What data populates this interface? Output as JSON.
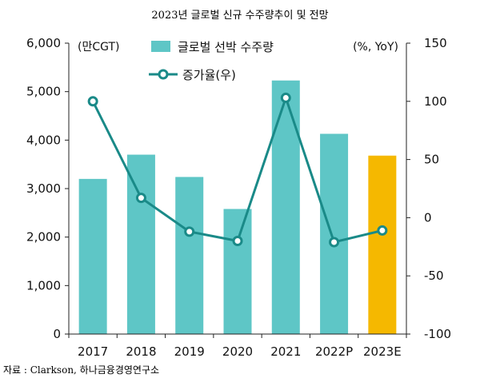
{
  "title": "2023년 글로벌 신규 수주량추이 및 전망",
  "source": "자료 : Clarkson, 하나금융경영연구소",
  "chart_data": {
    "type": "bar",
    "categories": [
      "2017",
      "2018",
      "2019",
      "2020",
      "2021",
      "2022P",
      "2023E"
    ],
    "series": [
      {
        "name": "글로벌 선박 수주량",
        "type": "bar",
        "axis": "left",
        "values": [
          3200,
          3700,
          3240,
          2580,
          5230,
          4130,
          3680
        ],
        "color": "#5ec6c6",
        "highlight": {
          "index": 6,
          "color": "#f5b800"
        }
      },
      {
        "name": "증가율(우)",
        "type": "line",
        "axis": "right",
        "values": [
          100,
          17,
          -12,
          -20,
          103,
          -21,
          -11
        ],
        "color": "#1a8a88"
      }
    ],
    "left_axis": {
      "unit": "(만CGT)",
      "min": 0,
      "max": 6000,
      "ticks": [
        0,
        1000,
        2000,
        3000,
        4000,
        5000,
        6000
      ],
      "tick_labels": [
        "0",
        "1,000",
        "2,000",
        "3,000",
        "4,000",
        "5,000",
        "6,000"
      ]
    },
    "right_axis": {
      "unit": "(%, YoY)",
      "min": -100,
      "max": 150,
      "ticks": [
        -100,
        -50,
        0,
        50,
        100,
        150
      ],
      "tick_labels": [
        "-100",
        "-50",
        "0",
        "50",
        "100",
        "150"
      ]
    },
    "grid": false,
    "legend_position": "top-center"
  }
}
